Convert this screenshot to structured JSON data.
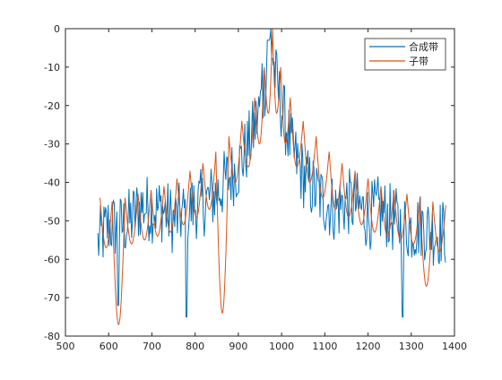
{
  "chart_data": {
    "type": "line",
    "title": "",
    "xlabel": "",
    "ylabel": "",
    "xlim": [
      500,
      1400
    ],
    "ylim": [
      -80,
      0
    ],
    "x_ticks": [
      500,
      600,
      700,
      800,
      900,
      1000,
      1100,
      1200,
      1300,
      1400
    ],
    "y_ticks": [
      0,
      -10,
      -20,
      -30,
      -40,
      -50,
      -60,
      -70,
      -80
    ],
    "grid": false,
    "legend_position": "top-right",
    "series": [
      {
        "name": "合成带",
        "color": "#0072BD",
        "kind": "noisy",
        "x_range": [
          575,
          1380
        ],
        "anchors": [
          [
            575,
            -56
          ],
          [
            600,
            -51
          ],
          [
            625,
            -52
          ],
          [
            650,
            -50
          ],
          [
            675,
            -46
          ],
          [
            700,
            -47
          ],
          [
            725,
            -47
          ],
          [
            750,
            -50
          ],
          [
            775,
            -48
          ],
          [
            800,
            -46
          ],
          [
            825,
            -45
          ],
          [
            850,
            -43
          ],
          [
            875,
            -39
          ],
          [
            900,
            -36
          ],
          [
            925,
            -30
          ],
          [
            940,
            -25
          ],
          [
            955,
            -18
          ],
          [
            965,
            -12
          ],
          [
            975,
            -3
          ],
          [
            985,
            -12
          ],
          [
            995,
            -18
          ],
          [
            1010,
            -25
          ],
          [
            1025,
            -32
          ],
          [
            1050,
            -38
          ],
          [
            1075,
            -42
          ],
          [
            1100,
            -45
          ],
          [
            1125,
            -47
          ],
          [
            1150,
            -45
          ],
          [
            1175,
            -46
          ],
          [
            1200,
            -49
          ],
          [
            1225,
            -47
          ],
          [
            1250,
            -49
          ],
          [
            1275,
            -51
          ],
          [
            1300,
            -52
          ],
          [
            1325,
            -51
          ],
          [
            1350,
            -53
          ],
          [
            1380,
            -53
          ]
        ],
        "peaks": [
          [
            975,
            0
          ],
          [
            968,
            -3
          ],
          [
            955,
            -9
          ]
        ],
        "dips": [
          [
            622,
            -72
          ],
          [
            780,
            -75
          ],
          [
            1280,
            -75
          ]
        ]
      },
      {
        "name": "子带",
        "color": "#D95319",
        "kind": "sinc",
        "x_range": [
          575,
          1380
        ],
        "lobe_peaks": [
          [
            979,
            0
          ],
          [
            998,
            -10
          ],
          [
            1020,
            -18
          ],
          [
            1050,
            -24
          ],
          [
            1080,
            -28
          ],
          [
            1110,
            -32
          ],
          [
            1140,
            -35
          ],
          [
            1170,
            -37
          ],
          [
            1200,
            -39
          ],
          [
            1230,
            -41
          ],
          [
            1260,
            -42
          ],
          [
            1290,
            -43
          ],
          [
            1320,
            -44
          ],
          [
            1350,
            -45
          ],
          [
            1380,
            -46
          ],
          [
            960,
            -10
          ],
          [
            938,
            -18
          ],
          [
            908,
            -24
          ],
          [
            878,
            -28
          ],
          [
            848,
            -32
          ],
          [
            818,
            -35
          ],
          [
            788,
            -37
          ],
          [
            758,
            -39
          ],
          [
            728,
            -41
          ],
          [
            698,
            -42
          ],
          [
            668,
            -43
          ],
          [
            638,
            -44
          ],
          [
            608,
            -45
          ],
          [
            580,
            -44
          ]
        ],
        "dips": [
          [
            620,
            -77
          ],
          [
            855,
            -74
          ],
          [
            1260,
            -69
          ],
          [
            1330,
            -67
          ]
        ]
      }
    ]
  }
}
